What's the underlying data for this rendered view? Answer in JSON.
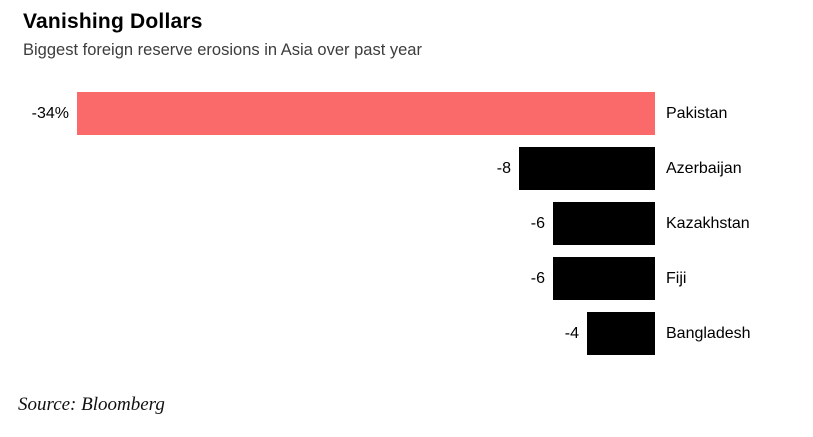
{
  "header": {
    "title": "Vanishing Dollars",
    "subtitle": "Biggest foreign reserve erosions in Asia over past year"
  },
  "chart_data": {
    "type": "bar",
    "orientation": "horizontal",
    "title": "Vanishing Dollars",
    "subtitle": "Biggest foreign reserve erosions in Asia over past year",
    "categories": [
      "Pakistan",
      "Azerbaijan",
      "Kazakhstan",
      "Fiji",
      "Bangladesh"
    ],
    "values": [
      -34,
      -8,
      -6,
      -6,
      -4
    ],
    "value_labels": [
      "-34%",
      "-8",
      "-6",
      "-6",
      "-4"
    ],
    "unit": "%",
    "xlim": [
      -34,
      0
    ],
    "bars_anchored": "right",
    "bar_colors": [
      "#FA6A6A",
      "#000000",
      "#000000",
      "#000000",
      "#000000"
    ],
    "highlight_color": "#FA6A6A",
    "default_bar_color": "#000000",
    "grid": false,
    "legend": false
  },
  "footer": {
    "source": "Source: Bloomberg"
  }
}
